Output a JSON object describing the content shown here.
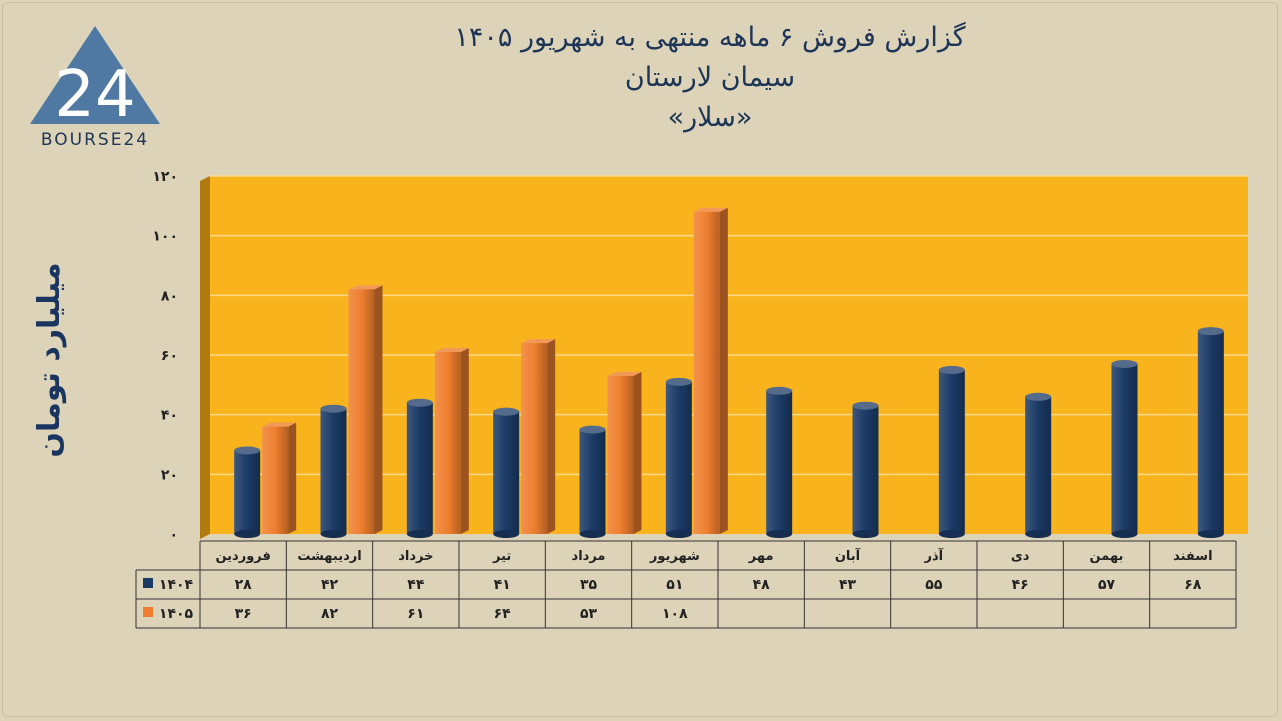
{
  "header": {
    "title_line1": "گزارش  فروش ۶ ماهه منتهی به شهریور ۱۴۰۵",
    "title_line2": "سیمان لارستان",
    "title_line3": "«سلار»"
  },
  "logo": {
    "number": "24",
    "text": "BOURSE24"
  },
  "colors": {
    "background": "#ddd3b8",
    "plot_bg": "#f9b31c",
    "series_1404": "#1b3a66",
    "series_1405": "#ef7f2f"
  },
  "chart_data": {
    "type": "bar",
    "ylabel": "میلیارد تومان",
    "ylim": [
      0,
      120
    ],
    "yticks": [
      0,
      20,
      40,
      60,
      80,
      100,
      120
    ],
    "ytick_labels": [
      "۰",
      "۲۰",
      "۴۰",
      "۶۰",
      "۸۰",
      "۱۰۰",
      "۱۲۰"
    ],
    "grid": true,
    "categories": [
      "فروردین",
      "اردیبهشت",
      "خرداد",
      "تیر",
      "مرداد",
      "شهریور",
      "مهر",
      "آبان",
      "آذر",
      "دی",
      "بهمن",
      "اسفند"
    ],
    "series": [
      {
        "name": "۱۴۰۴",
        "values": [
          28,
          42,
          44,
          41,
          35,
          51,
          48,
          43,
          55,
          46,
          57,
          68
        ],
        "labels": [
          "۲۸",
          "۴۲",
          "۴۴",
          "۴۱",
          "۳۵",
          "۵۱",
          "۴۸",
          "۴۳",
          "۵۵",
          "۴۶",
          "۵۷",
          "۶۸"
        ]
      },
      {
        "name": "۱۴۰۵",
        "values": [
          36,
          82,
          61,
          64,
          53,
          108,
          null,
          null,
          null,
          null,
          null,
          null
        ],
        "labels": [
          "۳۶",
          "۸۲",
          "۶۱",
          "۶۴",
          "۵۳",
          "۱۰۸",
          "",
          "",
          "",
          "",
          "",
          ""
        ]
      }
    ],
    "data_table": true
  }
}
